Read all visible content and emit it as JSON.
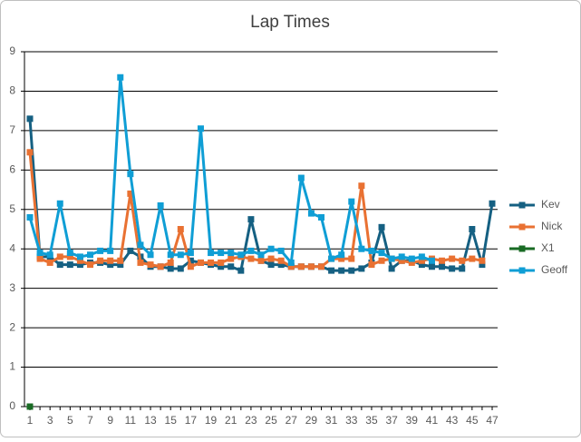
{
  "chart_data": {
    "type": "line",
    "title": "Lap Times",
    "categories": [
      1,
      null,
      3,
      null,
      5,
      null,
      7,
      null,
      9,
      null,
      11,
      null,
      13,
      null,
      15,
      null,
      17,
      null,
      19,
      null,
      21,
      null,
      23,
      null,
      25,
      null,
      27,
      null,
      29,
      null,
      31,
      null,
      33,
      null,
      35,
      null,
      37,
      null,
      39,
      null,
      41,
      null,
      43,
      null,
      45,
      null,
      47
    ],
    "series": [
      {
        "name": "Kev",
        "color": "#156082",
        "values": [
          7.3,
          3.8,
          3.8,
          3.6,
          3.6,
          3.6,
          3.65,
          3.65,
          3.6,
          3.6,
          3.95,
          3.8,
          3.55,
          3.55,
          3.5,
          3.5,
          3.7,
          3.65,
          3.6,
          3.55,
          3.55,
          3.45,
          4.75,
          3.7,
          3.6,
          3.6,
          3.55,
          3.55,
          3.55,
          3.55,
          3.45,
          3.45,
          3.45,
          3.5,
          3.65,
          4.55,
          3.5,
          3.7,
          3.7,
          3.6,
          3.55,
          3.55,
          3.5,
          3.5,
          4.5,
          3.6,
          5.15
        ]
      },
      {
        "name": "Nick",
        "color": "#e97132",
        "values": [
          6.45,
          3.75,
          3.65,
          3.8,
          3.8,
          3.7,
          3.6,
          3.7,
          3.7,
          3.7,
          5.4,
          3.65,
          3.6,
          3.55,
          3.65,
          4.5,
          3.55,
          3.65,
          3.65,
          3.65,
          3.75,
          3.8,
          3.75,
          3.7,
          3.75,
          3.7,
          3.55,
          3.55,
          3.55,
          3.55,
          3.75,
          3.75,
          3.75,
          5.6,
          3.6,
          3.7,
          3.75,
          3.7,
          3.65,
          3.7,
          3.75,
          3.7,
          3.75,
          3.7,
          3.75,
          3.7,
          null
        ]
      },
      {
        "name": "X1",
        "color": "#196b24",
        "values": [
          0,
          null,
          null,
          null,
          null,
          null,
          null,
          null,
          null,
          null,
          null,
          null,
          null,
          null,
          null,
          null,
          null,
          null,
          null,
          null,
          null,
          null,
          null,
          null,
          null,
          null,
          null,
          null,
          null,
          null,
          null,
          null,
          null,
          null,
          null,
          null,
          null,
          null,
          null,
          null,
          null,
          null,
          null,
          null,
          null,
          null,
          null
        ]
      },
      {
        "name": "Geoff",
        "color": "#0f9ed5",
        "values": [
          4.8,
          3.9,
          3.85,
          5.15,
          3.9,
          3.8,
          3.85,
          3.95,
          3.95,
          8.35,
          5.9,
          4.1,
          3.85,
          5.1,
          3.85,
          3.85,
          3.9,
          7.05,
          3.9,
          3.9,
          3.9,
          3.85,
          3.95,
          3.85,
          4.0,
          3.95,
          3.65,
          5.8,
          4.9,
          4.8,
          3.75,
          3.85,
          5.2,
          4.0,
          3.95,
          3.9,
          3.75,
          3.8,
          3.75,
          3.8,
          3.7,
          null,
          null,
          null,
          null,
          null,
          null
        ]
      }
    ],
    "ylim": [
      0,
      9
    ],
    "yticks": [
      0,
      1,
      2,
      3,
      4,
      5,
      6,
      7,
      8,
      9
    ],
    "grid": true,
    "legend": "right"
  }
}
